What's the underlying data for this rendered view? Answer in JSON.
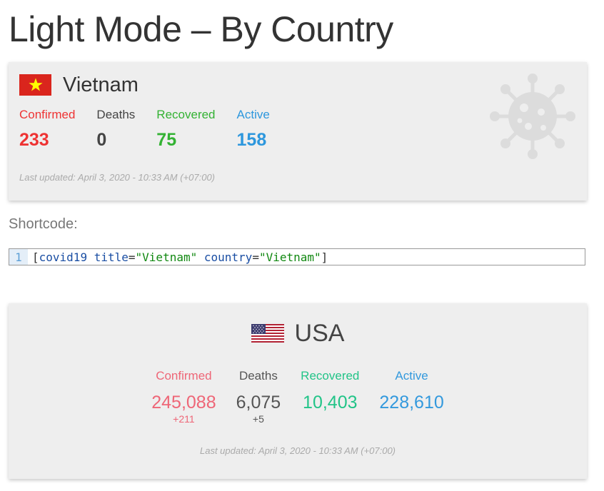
{
  "page": {
    "title": "Light Mode – By Country"
  },
  "vietnam_card": {
    "flag": "vietnam-flag-icon",
    "country": "Vietnam",
    "stats": [
      {
        "label": "Confirmed",
        "value": "233",
        "color": "#ee3333"
      },
      {
        "label": "Deaths",
        "value": "0",
        "color": "#444444"
      },
      {
        "label": "Recovered",
        "value": "75",
        "color": "#33b233"
      },
      {
        "label": "Active",
        "value": "158",
        "color": "#2d97dd"
      }
    ],
    "last_updated": "Last updated: April 3, 2020 - 10:33 AM (+07:00)",
    "watermark_icon": "virus-icon"
  },
  "shortcode": {
    "label": "Shortcode:",
    "line_number": "1",
    "code": {
      "open": "[",
      "tag": "covid19",
      "attr1": "title",
      "val1": "\"Vietnam\"",
      "attr2": "country",
      "val2": "\"Vietnam\"",
      "close": "]"
    }
  },
  "usa_card": {
    "flag": "usa-flag-icon",
    "country": "USA",
    "stats": [
      {
        "label": "Confirmed",
        "value": "245,088",
        "delta": "+211",
        "color": "#ee6677"
      },
      {
        "label": "Deaths",
        "value": "6,075",
        "delta": "+5",
        "color": "#555555"
      },
      {
        "label": "Recovered",
        "value": "10,403",
        "delta": "",
        "color": "#22c488"
      },
      {
        "label": "Active",
        "value": "228,610",
        "delta": "",
        "color": "#3399dd"
      }
    ],
    "last_updated": "Last updated: April 3, 2020 - 10:33 AM (+07:00)"
  }
}
